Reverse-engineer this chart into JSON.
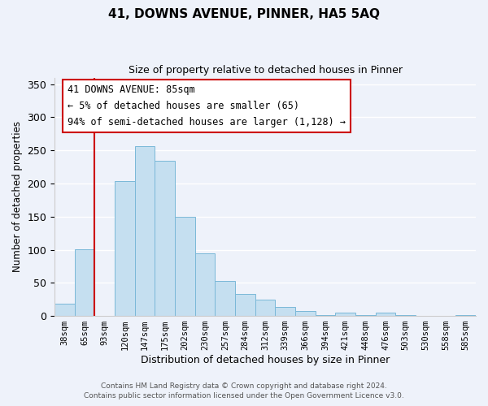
{
  "title": "41, DOWNS AVENUE, PINNER, HA5 5AQ",
  "subtitle": "Size of property relative to detached houses in Pinner",
  "xlabel": "Distribution of detached houses by size in Pinner",
  "ylabel": "Number of detached properties",
  "bar_labels": [
    "38sqm",
    "65sqm",
    "93sqm",
    "120sqm",
    "147sqm",
    "175sqm",
    "202sqm",
    "230sqm",
    "257sqm",
    "284sqm",
    "312sqm",
    "339sqm",
    "366sqm",
    "394sqm",
    "421sqm",
    "448sqm",
    "476sqm",
    "503sqm",
    "530sqm",
    "558sqm",
    "585sqm"
  ],
  "bar_values": [
    19,
    101,
    0,
    204,
    256,
    234,
    150,
    95,
    53,
    33,
    25,
    14,
    8,
    1,
    5,
    1,
    5,
    1,
    0,
    0,
    1
  ],
  "bar_color": "#c5dff0",
  "bar_edge_color": "#7ab8d8",
  "vline_x_idx": 2,
  "vline_color": "#cc0000",
  "ylim": [
    0,
    360
  ],
  "yticks": [
    0,
    50,
    100,
    150,
    200,
    250,
    300,
    350
  ],
  "annotation_title": "41 DOWNS AVENUE: 85sqm",
  "annotation_line1": "← 5% of detached houses are smaller (65)",
  "annotation_line2": "94% of semi-detached houses are larger (1,128) →",
  "footer_line1": "Contains HM Land Registry data © Crown copyright and database right 2024.",
  "footer_line2": "Contains public sector information licensed under the Open Government Licence v3.0.",
  "bg_color": "#eef2fa"
}
